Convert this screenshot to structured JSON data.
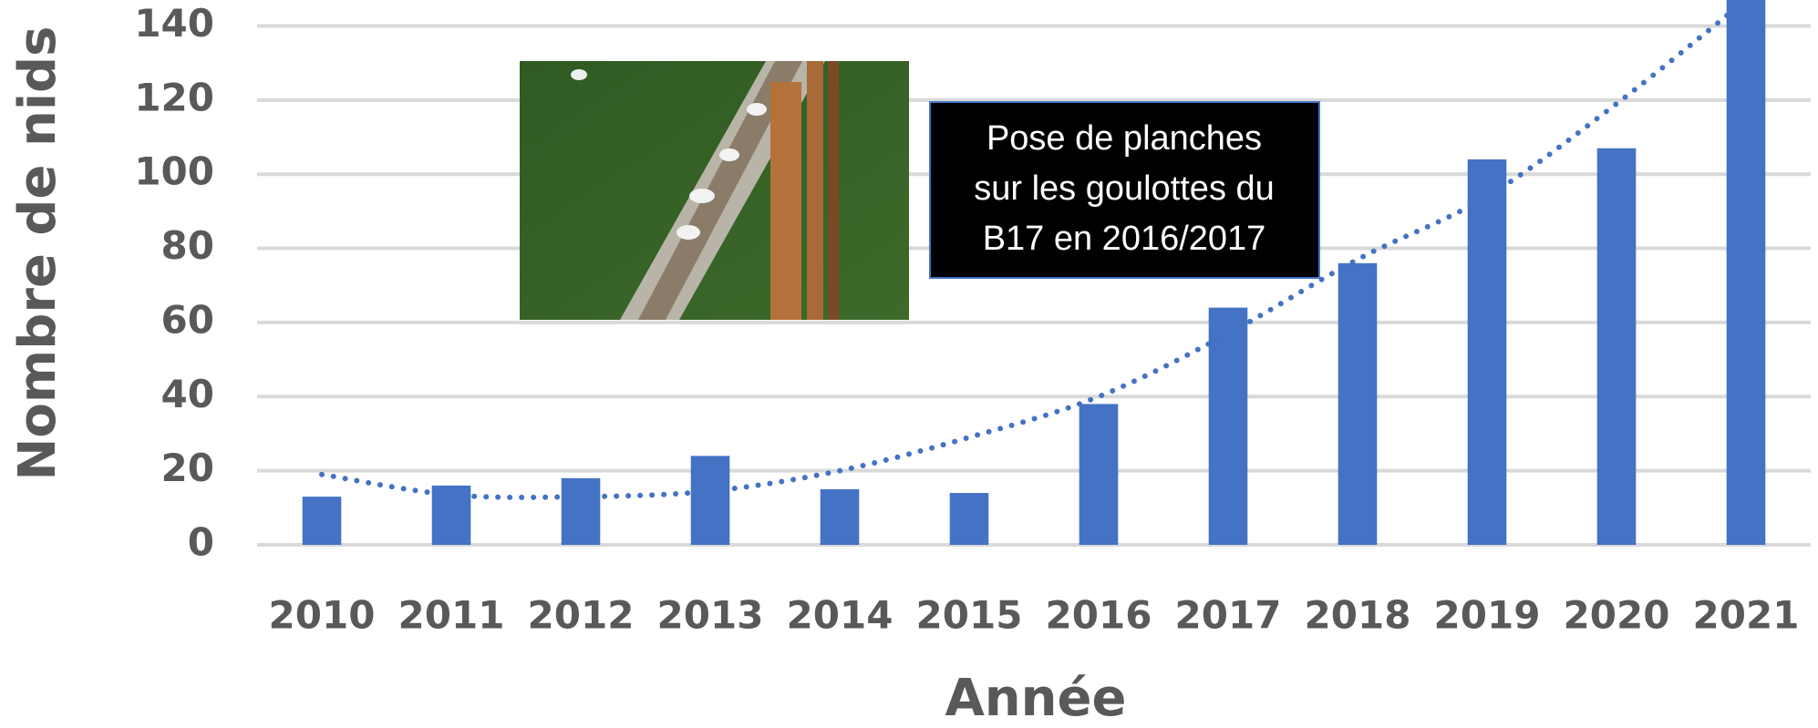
{
  "chart_data": {
    "type": "bar",
    "x_label": "Année",
    "y_label": "Nombre de nids",
    "categories": [
      "2010",
      "2011",
      "2012",
      "2013",
      "2014",
      "2015",
      "2016",
      "2017",
      "2018",
      "2019",
      "2020",
      "2021"
    ],
    "values": [
      13,
      16,
      18,
      24,
      15,
      14,
      38,
      64,
      76,
      104,
      107,
      147
    ],
    "color": "#4472c4",
    "trendline": {
      "color": "#4472c4",
      "values": [
        19,
        13.5,
        13,
        14.5,
        20,
        29,
        40,
        57,
        77,
        94,
        119,
        147
      ]
    },
    "ylim": [
      0,
      147
    ],
    "yticks": [
      0,
      20,
      40,
      60,
      80,
      100,
      120,
      140
    ],
    "grid": true,
    "annotation": [
      "Pose de planches",
      "sur les goulottes du",
      "B17 en 2016/2017"
    ]
  }
}
